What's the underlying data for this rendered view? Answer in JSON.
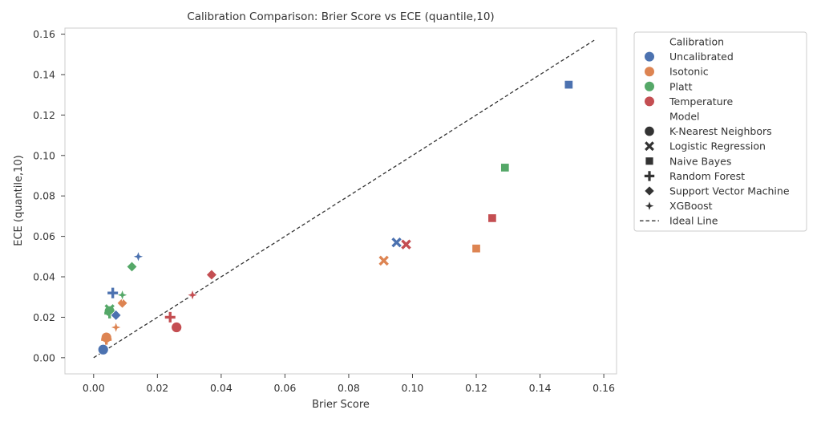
{
  "chart_data": {
    "type": "scatter",
    "title": "Calibration Comparison: Brier Score vs ECE (quantile,10)",
    "xlabel": "Brier Score",
    "ylabel": "ECE (quantile,10)",
    "xlim": [
      -0.009,
      0.164
    ],
    "ylim": [
      -0.008,
      0.163
    ],
    "xticks": [
      0.0,
      0.02,
      0.04,
      0.06,
      0.08,
      0.1,
      0.12,
      0.14,
      0.16
    ],
    "xtick_labels": [
      "0.00",
      "0.02",
      "0.04",
      "0.06",
      "0.08",
      "0.10",
      "0.12",
      "0.14",
      "0.16"
    ],
    "yticks": [
      0.0,
      0.02,
      0.04,
      0.06,
      0.08,
      0.1,
      0.12,
      0.14,
      0.16
    ],
    "ytick_labels": [
      "0.00",
      "0.02",
      "0.04",
      "0.06",
      "0.08",
      "0.10",
      "0.12",
      "0.14",
      "0.16"
    ],
    "grid": false,
    "legend_position": "outside-right",
    "legend": {
      "hue_title": "Calibration",
      "hue": [
        {
          "name": "Uncalibrated",
          "color": "#4c72b0"
        },
        {
          "name": "Isotonic",
          "color": "#dd8452"
        },
        {
          "name": "Platt",
          "color": "#55a868"
        },
        {
          "name": "Temperature",
          "color": "#c44e52"
        }
      ],
      "style_title": "Model",
      "style": [
        {
          "name": "K-Nearest Neighbors",
          "marker": "circle"
        },
        {
          "name": "Logistic Regression",
          "marker": "x"
        },
        {
          "name": "Naive Bayes",
          "marker": "square"
        },
        {
          "name": "Random Forest",
          "marker": "plus"
        },
        {
          "name": "Support Vector Machine",
          "marker": "diamond"
        },
        {
          "name": "XGBoost",
          "marker": "star"
        }
      ],
      "ideal_label": "Ideal Line"
    },
    "ideal_line": {
      "x": [
        0.0,
        0.157
      ],
      "y": [
        0.0,
        0.157
      ]
    },
    "points": [
      {
        "calibration": "Uncalibrated",
        "model": "K-Nearest Neighbors",
        "x": 0.003,
        "y": 0.004
      },
      {
        "calibration": "Isotonic",
        "model": "K-Nearest Neighbors",
        "x": 0.004,
        "y": 0.01
      },
      {
        "calibration": "Platt",
        "model": "K-Nearest Neighbors",
        "x": 0.005,
        "y": 0.023
      },
      {
        "calibration": "Temperature",
        "model": "K-Nearest Neighbors",
        "x": 0.026,
        "y": 0.015
      },
      {
        "calibration": "Uncalibrated",
        "model": "Logistic Regression",
        "x": 0.095,
        "y": 0.057
      },
      {
        "calibration": "Isotonic",
        "model": "Logistic Regression",
        "x": 0.091,
        "y": 0.048
      },
      {
        "calibration": "Platt",
        "model": "Logistic Regression",
        "x": 0.005,
        "y": 0.024
      },
      {
        "calibration": "Temperature",
        "model": "Logistic Regression",
        "x": 0.098,
        "y": 0.056
      },
      {
        "calibration": "Uncalibrated",
        "model": "Naive Bayes",
        "x": 0.149,
        "y": 0.135
      },
      {
        "calibration": "Isotonic",
        "model": "Naive Bayes",
        "x": 0.12,
        "y": 0.054
      },
      {
        "calibration": "Platt",
        "model": "Naive Bayes",
        "x": 0.129,
        "y": 0.094
      },
      {
        "calibration": "Temperature",
        "model": "Naive Bayes",
        "x": 0.125,
        "y": 0.069
      },
      {
        "calibration": "Uncalibrated",
        "model": "Random Forest",
        "x": 0.006,
        "y": 0.032
      },
      {
        "calibration": "Isotonic",
        "model": "Random Forest",
        "x": 0.004,
        "y": 0.009
      },
      {
        "calibration": "Platt",
        "model": "Random Forest",
        "x": 0.005,
        "y": 0.022
      },
      {
        "calibration": "Temperature",
        "model": "Random Forest",
        "x": 0.024,
        "y": 0.02
      },
      {
        "calibration": "Uncalibrated",
        "model": "Support Vector Machine",
        "x": 0.007,
        "y": 0.021
      },
      {
        "calibration": "Isotonic",
        "model": "Support Vector Machine",
        "x": 0.009,
        "y": 0.027
      },
      {
        "calibration": "Platt",
        "model": "Support Vector Machine",
        "x": 0.012,
        "y": 0.045
      },
      {
        "calibration": "Temperature",
        "model": "Support Vector Machine",
        "x": 0.037,
        "y": 0.041
      },
      {
        "calibration": "Uncalibrated",
        "model": "XGBoost",
        "x": 0.014,
        "y": 0.05
      },
      {
        "calibration": "Isotonic",
        "model": "XGBoost",
        "x": 0.007,
        "y": 0.015
      },
      {
        "calibration": "Platt",
        "model": "XGBoost",
        "x": 0.009,
        "y": 0.031
      },
      {
        "calibration": "Temperature",
        "model": "XGBoost",
        "x": 0.031,
        "y": 0.031
      }
    ]
  }
}
